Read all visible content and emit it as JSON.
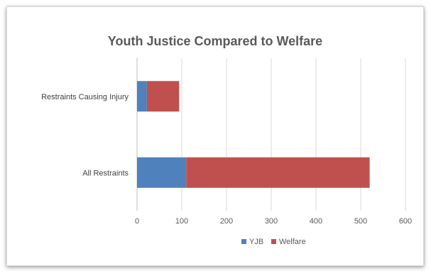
{
  "chart_data": {
    "type": "bar",
    "orientation": "horizontal",
    "stacked": true,
    "title": "Youth Justice Compared to Welfare",
    "categories": [
      "Restraints Causing Injury",
      "All Restraints"
    ],
    "series": [
      {
        "name": "YJB",
        "values": [
          22,
          110
        ],
        "color": "#4f81bd"
      },
      {
        "name": "Welfare",
        "values": [
          72,
          410
        ],
        "color": "#c0504d"
      }
    ],
    "xlim": [
      0,
      600
    ],
    "xticks": [
      0,
      100,
      200,
      300,
      400,
      500,
      600
    ],
    "grid": true,
    "legend": "bottom"
  }
}
